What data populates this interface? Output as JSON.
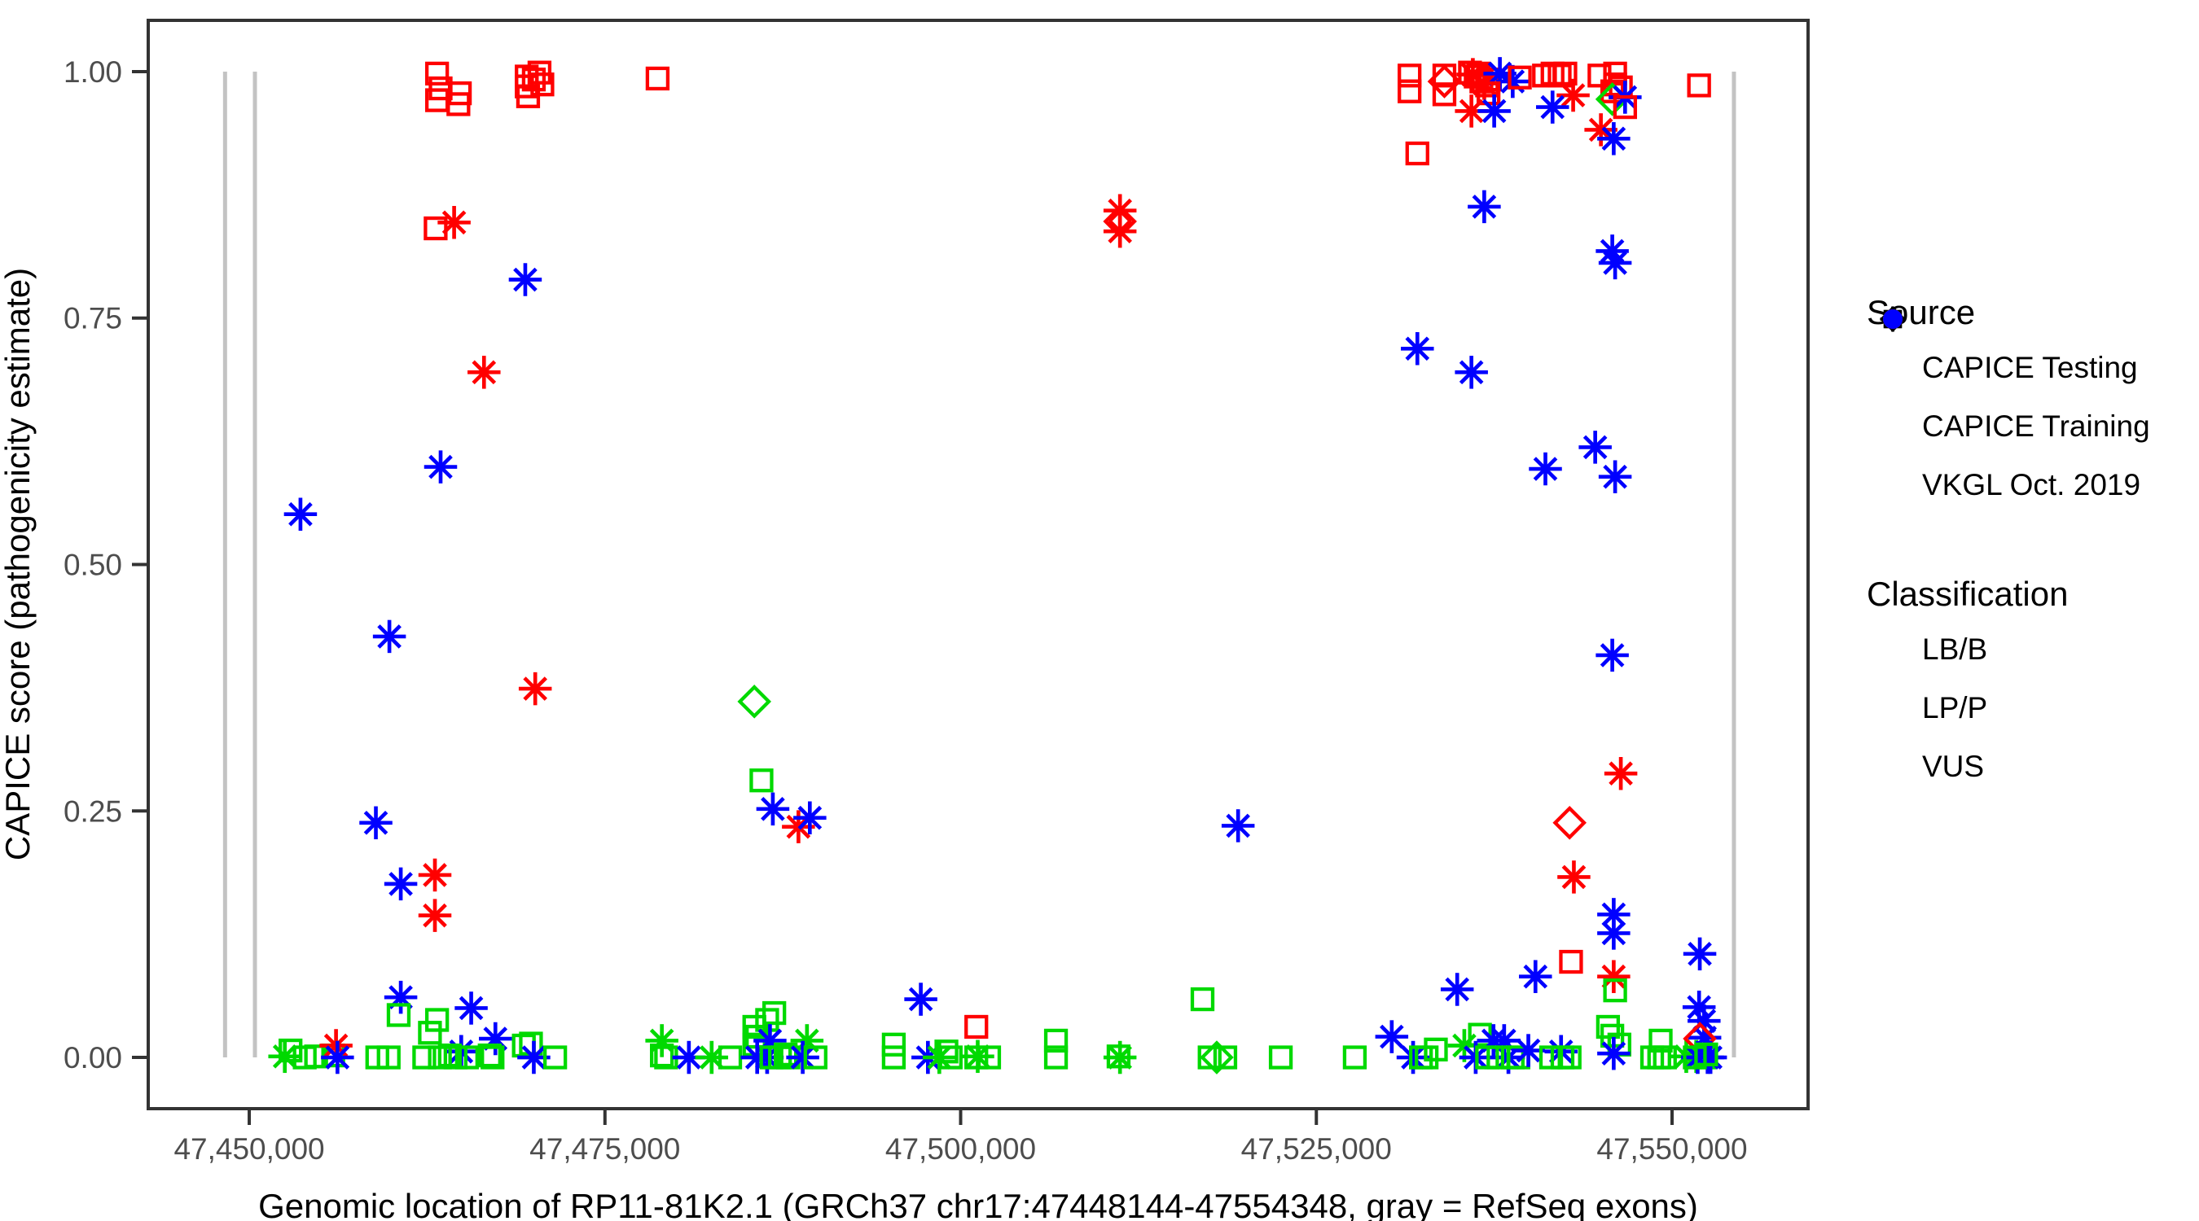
{
  "chart_data": {
    "type": "scatter",
    "title": "",
    "xlabel": "Genomic location of RP11-81K2.1 (GRCh37 chr17:47448144-47554348, gray = RefSeq exons)",
    "ylabel": "CAPICE score (pathogenicity estimate)",
    "x_range": [
      47442900,
      47559560
    ],
    "y_range": [
      -0.052,
      1.052
    ],
    "grid": false,
    "x_ticks": [
      {
        "value": 47450000,
        "label": "47,450,000"
      },
      {
        "value": 47475000,
        "label": "47,475,000"
      },
      {
        "value": 47500000,
        "label": "47,500,000"
      },
      {
        "value": 47525000,
        "label": "47,525,000"
      },
      {
        "value": 47550000,
        "label": "47,550,000"
      }
    ],
    "y_ticks": [
      {
        "value": 0.0,
        "label": "0.00"
      },
      {
        "value": 0.25,
        "label": "0.25"
      },
      {
        "value": 0.5,
        "label": "0.50"
      },
      {
        "value": 0.75,
        "label": "0.75"
      },
      {
        "value": 1.0,
        "label": "1.00"
      }
    ],
    "refseq_exons_bp": [
      47448300,
      47450400,
      47554350
    ],
    "exon_line_score_span": [
      0,
      1
    ],
    "shape_source_map": {
      "s": "CAPICE Training",
      "a": "VKGL Oct. 2019",
      "d": "CAPICE Testing"
    },
    "class_color_map": {
      "B": "#00d900",
      "P": "#ff0000",
      "V": "#0000ff"
    },
    "class_name_map": {
      "B": "LB/B",
      "P": "LP/P",
      "V": "VUS"
    },
    "points": [
      [
        47463200,
        0.998,
        "s",
        "P"
      ],
      [
        47463450,
        0.983,
        "s",
        "P"
      ],
      [
        47463200,
        0.971,
        "s",
        "P"
      ],
      [
        47464800,
        0.978,
        "s",
        "P"
      ],
      [
        47464700,
        0.967,
        "s",
        "P"
      ],
      [
        47469500,
        0.995,
        "s",
        "P"
      ],
      [
        47470400,
        0.999,
        "s",
        "P"
      ],
      [
        47469500,
        0.985,
        "s",
        "P"
      ],
      [
        47469600,
        0.975,
        "s",
        "P"
      ],
      [
        47470600,
        0.987,
        "s",
        "P"
      ],
      [
        47470000,
        0.992,
        "s",
        "P"
      ],
      [
        47478700,
        0.993,
        "s",
        "P"
      ],
      [
        47463100,
        0.841,
        "s",
        "P"
      ],
      [
        47464400,
        0.847,
        "a",
        "P"
      ],
      [
        47469400,
        0.789,
        "a",
        "V"
      ],
      [
        47466500,
        0.695,
        "a",
        "P"
      ],
      [
        47463450,
        0.599,
        "a",
        "V"
      ],
      [
        47453600,
        0.551,
        "a",
        "V"
      ],
      [
        47459850,
        0.427,
        "a",
        "V"
      ],
      [
        47470100,
        0.374,
        "a",
        "P"
      ],
      [
        47458900,
        0.238,
        "a",
        "V"
      ],
      [
        47460650,
        0.176,
        "a",
        "V"
      ],
      [
        47463050,
        0.185,
        "a",
        "P"
      ],
      [
        47463050,
        0.144,
        "a",
        "P"
      ],
      [
        47452500,
        0.001,
        "a",
        "B"
      ],
      [
        47452900,
        0.007,
        "s",
        "B"
      ],
      [
        47453900,
        0.0,
        "s",
        "B"
      ],
      [
        47454700,
        0.001,
        "s",
        "B"
      ],
      [
        47455900,
        0.002,
        "s",
        "B"
      ],
      [
        47456100,
        0.012,
        "a",
        "P"
      ],
      [
        47456200,
        0.0,
        "a",
        "V"
      ],
      [
        47460650,
        0.061,
        "a",
        "V"
      ],
      [
        47460500,
        0.043,
        "s",
        "B"
      ],
      [
        47459000,
        0.0,
        "s",
        "B"
      ],
      [
        47459800,
        0.0,
        "s",
        "B"
      ],
      [
        47463200,
        0.038,
        "s",
        "B"
      ],
      [
        47462700,
        0.025,
        "s",
        "B"
      ],
      [
        47465600,
        0.05,
        "a",
        "V"
      ],
      [
        47464900,
        0.006,
        "a",
        "V"
      ],
      [
        47462300,
        0.0,
        "s",
        "B"
      ],
      [
        47463400,
        0.0,
        "s",
        "B"
      ],
      [
        47464100,
        0.002,
        "s",
        "B"
      ],
      [
        47464500,
        0.0,
        "s",
        "B"
      ],
      [
        47465300,
        0.0,
        "s",
        "B"
      ],
      [
        47467300,
        0.019,
        "a",
        "V"
      ],
      [
        47466900,
        0.002,
        "s",
        "B"
      ],
      [
        47467100,
        0.0,
        "s",
        "B"
      ],
      [
        47469300,
        0.012,
        "s",
        "B"
      ],
      [
        47469800,
        0.014,
        "s",
        "B"
      ],
      [
        47470000,
        0.0,
        "a",
        "V"
      ],
      [
        47471500,
        0.0,
        "s",
        "B"
      ],
      [
        47479000,
        0.017,
        "a",
        "B"
      ],
      [
        47479000,
        0.002,
        "s",
        "B"
      ],
      [
        47479300,
        0.0,
        "s",
        "B"
      ],
      [
        47480900,
        0.0,
        "a",
        "V"
      ],
      [
        47482500,
        0.0,
        "a",
        "B"
      ],
      [
        47483800,
        0.0,
        "s",
        "B"
      ],
      [
        47485500,
        0.031,
        "s",
        "B"
      ],
      [
        47485700,
        0.021,
        "s",
        "B"
      ],
      [
        47485500,
        0.013,
        "s",
        "B"
      ],
      [
        47486400,
        0.038,
        "s",
        "B"
      ],
      [
        47486900,
        0.045,
        "s",
        "B"
      ],
      [
        47486600,
        0.017,
        "a",
        "V"
      ],
      [
        47485700,
        0.0,
        "a",
        "V"
      ],
      [
        47486400,
        0.0,
        "a",
        "V"
      ],
      [
        47486700,
        0.0,
        "s",
        "B"
      ],
      [
        47487300,
        0.0,
        "s",
        "B"
      ],
      [
        47487700,
        0.003,
        "s",
        "B"
      ],
      [
        47487900,
        0.0,
        "s",
        "B"
      ],
      [
        47489200,
        0.017,
        "a",
        "B"
      ],
      [
        47488900,
        0.0,
        "a",
        "V"
      ],
      [
        47489800,
        0.0,
        "s",
        "B"
      ],
      [
        47495300,
        0.013,
        "s",
        "B"
      ],
      [
        47495300,
        0.0,
        "s",
        "B"
      ],
      [
        47497200,
        0.059,
        "a",
        "V"
      ],
      [
        47497700,
        0.0,
        "a",
        "V"
      ],
      [
        47498500,
        0.0,
        "a",
        "B"
      ],
      [
        47499000,
        0.006,
        "s",
        "B"
      ],
      [
        47499300,
        0.0,
        "s",
        "B"
      ],
      [
        47501100,
        0.031,
        "s",
        "P"
      ],
      [
        47501100,
        0.0,
        "s",
        "B"
      ],
      [
        47501200,
        0.001,
        "a",
        "B"
      ],
      [
        47502000,
        0.0,
        "s",
        "B"
      ],
      [
        47506700,
        0.017,
        "s",
        "B"
      ],
      [
        47506700,
        0.0,
        "s",
        "B"
      ],
      [
        47511100,
        0.001,
        "s",
        "B"
      ],
      [
        47511200,
        0.0,
        "a",
        "B"
      ],
      [
        47511200,
        0.859,
        "a",
        "P"
      ],
      [
        47511200,
        0.848,
        "d",
        "P"
      ],
      [
        47511200,
        0.838,
        "a",
        "P"
      ],
      [
        47485500,
        0.361,
        "d",
        "B"
      ],
      [
        47486000,
        0.281,
        "s",
        "B"
      ],
      [
        47486800,
        0.252,
        "a",
        "V"
      ],
      [
        47488600,
        0.234,
        "a",
        "P"
      ],
      [
        47489400,
        0.243,
        "a",
        "V"
      ],
      [
        47519500,
        0.235,
        "a",
        "V"
      ],
      [
        47517000,
        0.059,
        "s",
        "B"
      ],
      [
        47517500,
        0.0,
        "s",
        "B"
      ],
      [
        47518000,
        0.0,
        "d",
        "B"
      ],
      [
        47518600,
        0.0,
        "s",
        "B"
      ],
      [
        47522500,
        0.0,
        "s",
        "B"
      ],
      [
        47527700,
        0.0,
        "s",
        "B"
      ],
      [
        47530300,
        0.021,
        "a",
        "V"
      ],
      [
        47531800,
        0.0,
        "a",
        "V"
      ],
      [
        47532350,
        0.0,
        "s",
        "B"
      ],
      [
        47532750,
        0.0,
        "s",
        "B"
      ],
      [
        47533400,
        0.008,
        "s",
        "B"
      ],
      [
        47534900,
        0.069,
        "a",
        "V"
      ],
      [
        47535400,
        0.012,
        "a",
        "B"
      ],
      [
        47536500,
        0.023,
        "s",
        "B"
      ],
      [
        47537450,
        0.017,
        "a",
        "V"
      ],
      [
        47538200,
        0.017,
        "a",
        "V"
      ],
      [
        47536200,
        0.0,
        "a",
        "V"
      ],
      [
        47538500,
        0.0,
        "a",
        "V"
      ],
      [
        47537000,
        0.0,
        "s",
        "B"
      ],
      [
        47537800,
        0.0,
        "s",
        "B"
      ],
      [
        47538800,
        0.0,
        "s",
        "B"
      ],
      [
        47539200,
        0.0,
        "s",
        "B"
      ],
      [
        47539900,
        0.007,
        "a",
        "V"
      ],
      [
        47540400,
        0.082,
        "a",
        "V"
      ],
      [
        47542900,
        0.097,
        "s",
        "P"
      ],
      [
        47542200,
        0.006,
        "a",
        "V"
      ],
      [
        47541500,
        0.0,
        "s",
        "B"
      ],
      [
        47542300,
        0.0,
        "s",
        "B"
      ],
      [
        47542800,
        0.0,
        "s",
        "B"
      ],
      [
        47545900,
        0.082,
        "a",
        "P"
      ],
      [
        47546000,
        0.068,
        "s",
        "B"
      ],
      [
        47545500,
        0.031,
        "s",
        "B"
      ],
      [
        47545800,
        0.022,
        "s",
        "B"
      ],
      [
        47546300,
        0.013,
        "s",
        "B"
      ],
      [
        47545900,
        0.004,
        "a",
        "V"
      ],
      [
        47549200,
        0.017,
        "s",
        "B"
      ],
      [
        47548600,
        0.0,
        "s",
        "B"
      ],
      [
        47549100,
        0.0,
        "s",
        "B"
      ],
      [
        47549500,
        0.0,
        "s",
        "B"
      ],
      [
        47551000,
        0.001,
        "a",
        "B"
      ],
      [
        47531550,
        0.996,
        "s",
        "P"
      ],
      [
        47531550,
        0.98,
        "s",
        "P"
      ],
      [
        47534000,
        0.996,
        "s",
        "P"
      ],
      [
        47534000,
        0.99,
        "d",
        "P"
      ],
      [
        47534000,
        0.977,
        "s",
        "P"
      ],
      [
        47535800,
        0.999,
        "s",
        "P"
      ],
      [
        47536200,
        0.995,
        "s",
        "P"
      ],
      [
        47536600,
        0.99,
        "s",
        "P"
      ],
      [
        47537000,
        0.986,
        "s",
        "P"
      ],
      [
        47536400,
        0.998,
        "s",
        "P"
      ],
      [
        47537200,
        0.992,
        "s",
        "P"
      ],
      [
        47536000,
        0.997,
        "a",
        "P"
      ],
      [
        47536800,
        0.988,
        "a",
        "P"
      ],
      [
        47537900,
        0.998,
        "a",
        "V"
      ],
      [
        47538800,
        0.99,
        "a",
        "V"
      ],
      [
        47539300,
        0.994,
        "s",
        "P"
      ],
      [
        47537100,
        0.978,
        "s",
        "P"
      ],
      [
        47535900,
        0.96,
        "a",
        "P"
      ],
      [
        47537500,
        0.96,
        "a",
        "V"
      ],
      [
        47541000,
        0.996,
        "s",
        "P"
      ],
      [
        47541600,
        0.998,
        "s",
        "P"
      ],
      [
        47542100,
        0.996,
        "s",
        "P"
      ],
      [
        47542500,
        0.998,
        "s",
        "P"
      ],
      [
        47543050,
        0.976,
        "a",
        "P"
      ],
      [
        47541600,
        0.964,
        "a",
        "V"
      ],
      [
        47544900,
        0.996,
        "s",
        "P"
      ],
      [
        47546000,
        0.998,
        "s",
        "P"
      ],
      [
        47546000,
        0.987,
        "s",
        "P"
      ],
      [
        47545800,
        0.98,
        "s",
        "P"
      ],
      [
        47546400,
        0.984,
        "s",
        "P"
      ],
      [
        47545800,
        0.972,
        "d",
        "B"
      ],
      [
        47546700,
        0.974,
        "a",
        "V"
      ],
      [
        47546700,
        0.964,
        "s",
        "P"
      ],
      [
        47545000,
        0.941,
        "a",
        "P"
      ],
      [
        47545900,
        0.932,
        "a",
        "V"
      ],
      [
        47532100,
        0.917,
        "s",
        "P"
      ],
      [
        47551900,
        0.986,
        "s",
        "P"
      ],
      [
        47536800,
        0.863,
        "a",
        "V"
      ],
      [
        47545800,
        0.818,
        "a",
        "V"
      ],
      [
        47546000,
        0.806,
        "a",
        "V"
      ],
      [
        47532100,
        0.719,
        "a",
        "V"
      ],
      [
        47535900,
        0.695,
        "a",
        "V"
      ],
      [
        47544600,
        0.619,
        "a",
        "V"
      ],
      [
        47541100,
        0.597,
        "a",
        "V"
      ],
      [
        47546000,
        0.589,
        "a",
        "V"
      ],
      [
        47545800,
        0.408,
        "a",
        "V"
      ],
      [
        47546400,
        0.288,
        "a",
        "P"
      ],
      [
        47542800,
        0.238,
        "d",
        "P"
      ],
      [
        47543100,
        0.183,
        "a",
        "P"
      ],
      [
        47545900,
        0.145,
        "a",
        "V"
      ],
      [
        47545900,
        0.126,
        "a",
        "V"
      ],
      [
        47551950,
        0.105,
        "a",
        "V"
      ],
      [
        47551900,
        0.051,
        "a",
        "V"
      ],
      [
        47552250,
        0.037,
        "a",
        "V"
      ],
      [
        47552300,
        0.02,
        "a",
        "V"
      ],
      [
        47551950,
        0.019,
        "d",
        "P"
      ],
      [
        47551700,
        0.001,
        "a",
        "B"
      ],
      [
        47552300,
        0.0,
        "s",
        "B"
      ],
      [
        47551800,
        0.0,
        "a",
        "V"
      ],
      [
        47552500,
        0.0,
        "a",
        "V"
      ],
      [
        47552700,
        0.0,
        "a",
        "V"
      ],
      [
        47551600,
        0.0,
        "s",
        "B"
      ],
      [
        47552400,
        0.003,
        "s",
        "B"
      ]
    ]
  },
  "legend": {
    "source_title": "Source",
    "source_items": [
      {
        "label": "CAPICE Testing",
        "shape": "d",
        "icon": "diamond-icon"
      },
      {
        "label": "CAPICE Training",
        "shape": "s",
        "icon": "square-icon"
      },
      {
        "label": "VKGL Oct. 2019",
        "shape": "a",
        "icon": "asterisk-icon"
      }
    ],
    "classification_title": "Classification",
    "classification_items": [
      {
        "label": "LB/B",
        "color": "#00d900",
        "icon": "green-dot-icon"
      },
      {
        "label": "LP/P",
        "color": "#ff0000",
        "icon": "red-dot-icon"
      },
      {
        "label": "VUS",
        "color": "#0000ff",
        "icon": "blue-dot-icon"
      }
    ]
  },
  "style": {
    "exon_line_color": "#c3c3c3",
    "panel_border_color": "#333333",
    "tick_color": "#333333",
    "tick_label_color": "#4d4d4d"
  }
}
